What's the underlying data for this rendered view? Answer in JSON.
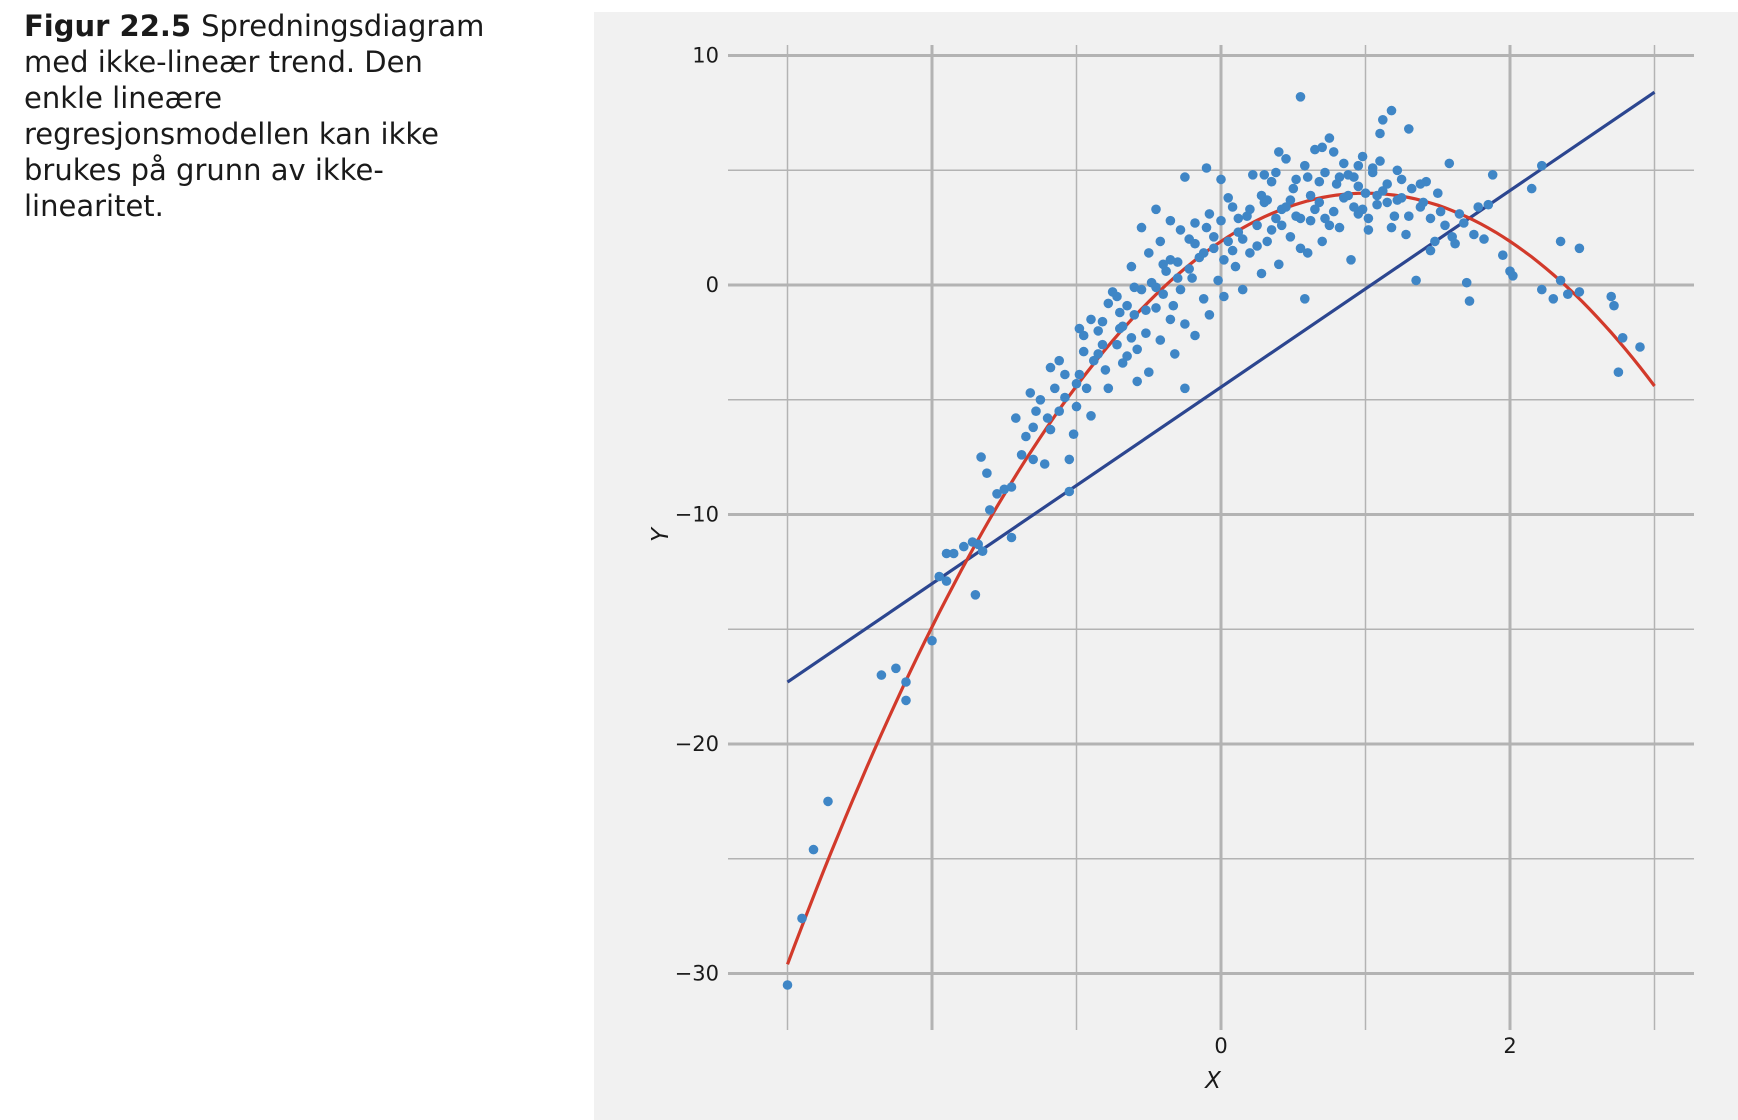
{
  "caption": {
    "label": "Figur 22.5",
    "text": "Spredningsdiagram med ikke-lineær trend. Den enkle lineære regresjonsmodellen kan ikke brukes på grunn av ikke-linearitet."
  },
  "chart_data": {
    "type": "scatter",
    "title": "",
    "xlabel": "X",
    "ylabel": "Y",
    "xlim": [
      -3.0,
      3.1
    ],
    "ylim": [
      -32.5,
      10.5
    ],
    "x_ticks": [
      {
        "value": 0,
        "label": "0"
      },
      {
        "value": 2,
        "label": "2"
      }
    ],
    "x_grid_major": [
      -2,
      0,
      2
    ],
    "x_grid_minor": [
      -3,
      -1,
      1,
      3
    ],
    "y_ticks": [
      {
        "value": 10,
        "label": "10"
      },
      {
        "value": 0,
        "label": "0"
      },
      {
        "value": -10,
        "label": "−10"
      },
      {
        "value": -20,
        "label": "−20"
      },
      {
        "value": -30,
        "label": "−30"
      }
    ],
    "y_grid_major": [
      10,
      0,
      -10,
      -20,
      -30
    ],
    "y_grid_minor": [
      5,
      -5,
      -15,
      -25
    ],
    "grid": true,
    "colors": {
      "points": "#3f86c6",
      "quadratic_fit": "#d23a2b",
      "linear_fit": "#2c4690",
      "grid": "#b3b3b3",
      "panel": "#f1f1f1"
    },
    "linear_fit": {
      "x": [
        -3.0,
        3.0
      ],
      "y": [
        -17.3,
        8.4
      ]
    },
    "quadratic_fit": {
      "x_range": [
        -3.0,
        3.0
      ],
      "vertex_x": 1.0,
      "vertex_y": 4.0,
      "coef_a": -2.1
    },
    "points": [
      {
        "x": -3.0,
        "y": -30.5
      },
      {
        "x": -2.9,
        "y": -27.6
      },
      {
        "x": -2.82,
        "y": -24.6
      },
      {
        "x": -2.72,
        "y": -22.5
      },
      {
        "x": -2.35,
        "y": -17.0
      },
      {
        "x": -2.25,
        "y": -16.7
      },
      {
        "x": -2.18,
        "y": -17.3
      },
      {
        "x": -2.18,
        "y": -18.1
      },
      {
        "x": -2.0,
        "y": -15.5
      },
      {
        "x": -1.95,
        "y": -12.7
      },
      {
        "x": -1.9,
        "y": -12.9
      },
      {
        "x": -1.9,
        "y": -11.7
      },
      {
        "x": -1.85,
        "y": -11.7
      },
      {
        "x": -1.78,
        "y": -11.4
      },
      {
        "x": -1.72,
        "y": -11.2
      },
      {
        "x": -1.7,
        "y": -13.5
      },
      {
        "x": -1.68,
        "y": -11.3
      },
      {
        "x": -1.65,
        "y": -11.6
      },
      {
        "x": -1.6,
        "y": -9.8
      },
      {
        "x": -1.55,
        "y": -9.1
      },
      {
        "x": -1.5,
        "y": -8.9
      },
      {
        "x": -1.45,
        "y": -8.8
      },
      {
        "x": -1.45,
        "y": -11.0
      },
      {
        "x": -1.62,
        "y": -8.2
      },
      {
        "x": -1.66,
        "y": -7.5
      },
      {
        "x": -1.38,
        "y": -7.4
      },
      {
        "x": -1.3,
        "y": -7.6
      },
      {
        "x": -1.3,
        "y": -6.2
      },
      {
        "x": -1.28,
        "y": -5.5
      },
      {
        "x": -1.2,
        "y": -5.8
      },
      {
        "x": -1.22,
        "y": -7.8
      },
      {
        "x": -1.18,
        "y": -6.3
      },
      {
        "x": -1.15,
        "y": -4.5
      },
      {
        "x": -1.12,
        "y": -3.3
      },
      {
        "x": -1.08,
        "y": -3.9
      },
      {
        "x": -1.05,
        "y": -9.0
      },
      {
        "x": -1.05,
        "y": -7.6
      },
      {
        "x": -1.02,
        "y": -6.5
      },
      {
        "x": -1.0,
        "y": -5.3
      },
      {
        "x": -0.98,
        "y": -3.9
      },
      {
        "x": -0.95,
        "y": -2.9
      },
      {
        "x": -0.93,
        "y": -4.5
      },
      {
        "x": -0.9,
        "y": -5.7
      },
      {
        "x": -0.88,
        "y": -3.3
      },
      {
        "x": -0.85,
        "y": -2.0
      },
      {
        "x": -0.82,
        "y": -1.6
      },
      {
        "x": -0.8,
        "y": -3.7
      },
      {
        "x": -0.78,
        "y": -4.5
      },
      {
        "x": -0.75,
        "y": -0.3
      },
      {
        "x": -0.72,
        "y": -2.6
      },
      {
        "x": -0.7,
        "y": -1.9
      },
      {
        "x": -0.68,
        "y": -3.4
      },
      {
        "x": -0.65,
        "y": -0.9
      },
      {
        "x": -0.62,
        "y": -2.3
      },
      {
        "x": -0.6,
        "y": -1.3
      },
      {
        "x": -0.58,
        "y": -4.2
      },
      {
        "x": -0.55,
        "y": -0.2
      },
      {
        "x": -0.52,
        "y": -2.1
      },
      {
        "x": -0.5,
        "y": -3.8
      },
      {
        "x": -0.48,
        "y": 0.1
      },
      {
        "x": -0.45,
        "y": -1.0
      },
      {
        "x": -0.42,
        "y": -2.4
      },
      {
        "x": -0.4,
        "y": -0.4
      },
      {
        "x": -0.38,
        "y": 0.6
      },
      {
        "x": -0.35,
        "y": -1.5
      },
      {
        "x": -0.32,
        "y": -3.0
      },
      {
        "x": -0.3,
        "y": 1.0
      },
      {
        "x": -0.28,
        "y": -0.2
      },
      {
        "x": -0.25,
        "y": -1.7
      },
      {
        "x": -0.25,
        "y": -4.5
      },
      {
        "x": -0.22,
        "y": 2.0
      },
      {
        "x": -0.2,
        "y": 0.3
      },
      {
        "x": -0.18,
        "y": -2.2
      },
      {
        "x": -0.15,
        "y": 1.2
      },
      {
        "x": -0.12,
        "y": -0.6
      },
      {
        "x": -0.1,
        "y": 2.5
      },
      {
        "x": -0.08,
        "y": -1.3
      },
      {
        "x": -0.05,
        "y": 1.6
      },
      {
        "x": -0.02,
        "y": 0.2
      },
      {
        "x": 0.0,
        "y": 2.8
      },
      {
        "x": 0.02,
        "y": -0.5
      },
      {
        "x": 0.05,
        "y": 1.9
      },
      {
        "x": 0.08,
        "y": 3.4
      },
      {
        "x": 0.1,
        "y": 0.8
      },
      {
        "x": 0.12,
        "y": 2.3
      },
      {
        "x": 0.15,
        "y": -0.2
      },
      {
        "x": 0.18,
        "y": 3.0
      },
      {
        "x": 0.2,
        "y": 1.4
      },
      {
        "x": 0.22,
        "y": 4.8
      },
      {
        "x": 0.25,
        "y": 2.6
      },
      {
        "x": 0.28,
        "y": 0.5
      },
      {
        "x": 0.3,
        "y": 3.6
      },
      {
        "x": 0.32,
        "y": 1.9
      },
      {
        "x": 0.35,
        "y": 4.5
      },
      {
        "x": 0.38,
        "y": 2.9
      },
      {
        "x": 0.4,
        "y": 0.9
      },
      {
        "x": 0.42,
        "y": 3.3
      },
      {
        "x": 0.45,
        "y": 5.5
      },
      {
        "x": 0.48,
        "y": 2.1
      },
      {
        "x": 0.5,
        "y": 4.2
      },
      {
        "x": 0.52,
        "y": 3.0
      },
      {
        "x": 0.55,
        "y": 8.2
      },
      {
        "x": 0.55,
        "y": 1.6
      },
      {
        "x": 0.58,
        "y": -0.6
      },
      {
        "x": 0.6,
        "y": 4.7
      },
      {
        "x": 0.62,
        "y": 2.8
      },
      {
        "x": 0.65,
        "y": 5.9
      },
      {
        "x": 0.68,
        "y": 3.6
      },
      {
        "x": 0.7,
        "y": 1.9
      },
      {
        "x": 0.72,
        "y": 4.9
      },
      {
        "x": 0.75,
        "y": 6.4
      },
      {
        "x": 0.78,
        "y": 3.2
      },
      {
        "x": 0.8,
        "y": 4.4
      },
      {
        "x": 0.82,
        "y": 2.5
      },
      {
        "x": 0.85,
        "y": 5.3
      },
      {
        "x": 0.88,
        "y": 3.9
      },
      {
        "x": 0.9,
        "y": 1.1
      },
      {
        "x": 0.92,
        "y": 4.7
      },
      {
        "x": 0.95,
        "y": 3.1
      },
      {
        "x": 0.98,
        "y": 5.6
      },
      {
        "x": 1.0,
        "y": 4.0
      },
      {
        "x": 1.02,
        "y": 2.4
      },
      {
        "x": 1.05,
        "y": 5.1
      },
      {
        "x": 1.08,
        "y": 3.5
      },
      {
        "x": 1.1,
        "y": 6.6
      },
      {
        "x": 1.12,
        "y": 7.2
      },
      {
        "x": 1.15,
        "y": 4.4
      },
      {
        "x": 1.18,
        "y": 7.6
      },
      {
        "x": 1.2,
        "y": 3.0
      },
      {
        "x": 1.22,
        "y": 5.0
      },
      {
        "x": 1.25,
        "y": 3.8
      },
      {
        "x": 1.28,
        "y": 2.2
      },
      {
        "x": 1.3,
        "y": 6.8
      },
      {
        "x": 1.32,
        "y": 4.2
      },
      {
        "x": 1.35,
        "y": 0.2
      },
      {
        "x": 1.38,
        "y": 3.4
      },
      {
        "x": 1.42,
        "y": 4.5
      },
      {
        "x": 1.45,
        "y": 2.9
      },
      {
        "x": 1.48,
        "y": 1.9
      },
      {
        "x": 1.5,
        "y": 4.0
      },
      {
        "x": 1.55,
        "y": 2.6
      },
      {
        "x": 1.58,
        "y": 5.3
      },
      {
        "x": 1.62,
        "y": 1.8
      },
      {
        "x": 1.65,
        "y": 3.1
      },
      {
        "x": 1.7,
        "y": 0.1
      },
      {
        "x": 1.72,
        "y": -0.7
      },
      {
        "x": 1.75,
        "y": 2.2
      },
      {
        "x": 1.78,
        "y": 3.4
      },
      {
        "x": 1.82,
        "y": 2.0
      },
      {
        "x": 1.85,
        "y": 3.5
      },
      {
        "x": 1.88,
        "y": 4.8
      },
      {
        "x": 1.95,
        "y": 1.3
      },
      {
        "x": 2.0,
        "y": 0.6
      },
      {
        "x": 2.02,
        "y": 0.4
      },
      {
        "x": 2.15,
        "y": 4.2
      },
      {
        "x": 2.22,
        "y": 5.2
      },
      {
        "x": 2.22,
        "y": -0.2
      },
      {
        "x": 2.3,
        "y": -0.6
      },
      {
        "x": 2.35,
        "y": 1.9
      },
      {
        "x": 2.35,
        "y": 0.2
      },
      {
        "x": 2.4,
        "y": -0.4
      },
      {
        "x": 2.48,
        "y": 1.6
      },
      {
        "x": 2.48,
        "y": -0.3
      },
      {
        "x": 2.7,
        "y": -0.5
      },
      {
        "x": 2.72,
        "y": -0.9
      },
      {
        "x": 2.75,
        "y": -3.8
      },
      {
        "x": 2.78,
        "y": -2.3
      },
      {
        "x": 2.9,
        "y": -2.7
      },
      {
        "x": -0.62,
        "y": 0.8
      },
      {
        "x": -0.5,
        "y": 1.4
      },
      {
        "x": -0.42,
        "y": 1.9
      },
      {
        "x": -0.35,
        "y": 1.1
      },
      {
        "x": -0.28,
        "y": 2.4
      },
      {
        "x": -0.18,
        "y": 1.8
      },
      {
        "x": -0.08,
        "y": 3.1
      },
      {
        "x": 0.05,
        "y": 3.8
      },
      {
        "x": 0.15,
        "y": 2.0
      },
      {
        "x": 0.28,
        "y": 3.9
      },
      {
        "x": 0.38,
        "y": 4.9
      },
      {
        "x": 0.48,
        "y": 3.7
      },
      {
        "x": 0.58,
        "y": 5.2
      },
      {
        "x": 0.68,
        "y": 4.5
      },
      {
        "x": 0.78,
        "y": 5.8
      },
      {
        "x": 0.88,
        "y": 4.8
      },
      {
        "x": 0.98,
        "y": 3.3
      },
      {
        "x": 1.05,
        "y": 4.9
      },
      {
        "x": 1.15,
        "y": 3.6
      },
      {
        "x": 1.25,
        "y": 4.6
      },
      {
        "x": -0.9,
        "y": -1.5
      },
      {
        "x": -0.78,
        "y": -0.8
      },
      {
        "x": -0.68,
        "y": -1.8
      },
      {
        "x": -0.58,
        "y": -2.8
      },
      {
        "x": -0.45,
        "y": -0.1
      },
      {
        "x": -0.33,
        "y": -0.9
      },
      {
        "x": -0.22,
        "y": 0.7
      },
      {
        "x": -0.12,
        "y": 1.4
      },
      {
        "x": 0.02,
        "y": 1.1
      },
      {
        "x": 0.12,
        "y": 2.9
      },
      {
        "x": 0.25,
        "y": 1.7
      },
      {
        "x": 0.35,
        "y": 2.4
      },
      {
        "x": 0.45,
        "y": 3.4
      },
      {
        "x": 0.55,
        "y": 2.9
      },
      {
        "x": 0.65,
        "y": 3.3
      },
      {
        "x": 0.75,
        "y": 2.6
      },
      {
        "x": 0.85,
        "y": 3.8
      },
      {
        "x": 0.95,
        "y": 4.3
      },
      {
        "x": 1.02,
        "y": 2.9
      },
      {
        "x": 1.12,
        "y": 4.1
      },
      {
        "x": -1.35,
        "y": -6.6
      },
      {
        "x": -1.25,
        "y": -5.0
      },
      {
        "x": -1.12,
        "y": -5.5
      },
      {
        "x": -1.0,
        "y": -4.3
      },
      {
        "x": -0.95,
        "y": -2.2
      },
      {
        "x": -0.85,
        "y": -3.0
      },
      {
        "x": -0.72,
        "y": -0.5
      },
      {
        "x": -0.6,
        "y": -0.1
      },
      {
        "x": -0.52,
        "y": -1.1
      },
      {
        "x": -0.4,
        "y": 0.9
      },
      {
        "x": -0.3,
        "y": 0.3
      },
      {
        "x": -0.18,
        "y": 2.7
      },
      {
        "x": -0.05,
        "y": 2.1
      },
      {
        "x": 0.08,
        "y": 1.5
      },
      {
        "x": 0.2,
        "y": 3.3
      },
      {
        "x": 0.32,
        "y": 3.7
      },
      {
        "x": 0.42,
        "y": 2.6
      },
      {
        "x": 0.52,
        "y": 4.6
      },
      {
        "x": 0.62,
        "y": 3.9
      },
      {
        "x": 0.72,
        "y": 2.9
      },
      {
        "x": 0.82,
        "y": 4.7
      },
      {
        "x": 0.92,
        "y": 3.4
      },
      {
        "x": 1.08,
        "y": 3.9
      },
      {
        "x": 1.18,
        "y": 2.5
      },
      {
        "x": -0.25,
        "y": 4.7
      },
      {
        "x": -0.1,
        "y": 5.1
      },
      {
        "x": 0.0,
        "y": 4.6
      },
      {
        "x": 0.3,
        "y": 4.8
      },
      {
        "x": 0.4,
        "y": 5.8
      },
      {
        "x": 0.7,
        "y": 6.0
      },
      {
        "x": 0.95,
        "y": 5.2
      },
      {
        "x": 1.1,
        "y": 5.4
      },
      {
        "x": -0.45,
        "y": 3.3
      },
      {
        "x": -0.55,
        "y": 2.5
      },
      {
        "x": -0.35,
        "y": 2.8
      },
      {
        "x": 0.6,
        "y": 1.4
      },
      {
        "x": -1.42,
        "y": -5.8
      },
      {
        "x": -1.32,
        "y": -4.7
      },
      {
        "x": -1.18,
        "y": -3.6
      },
      {
        "x": -1.08,
        "y": -4.9
      },
      {
        "x": -0.98,
        "y": -1.9
      },
      {
        "x": -0.82,
        "y": -2.6
      },
      {
        "x": -0.7,
        "y": -1.2
      },
      {
        "x": -0.65,
        "y": -3.1
      },
      {
        "x": 1.38,
        "y": 4.4
      },
      {
        "x": 1.45,
        "y": 1.5
      },
      {
        "x": 1.52,
        "y": 3.2
      },
      {
        "x": 1.6,
        "y": 2.1
      },
      {
        "x": 1.3,
        "y": 3.0
      },
      {
        "x": 1.22,
        "y": 3.7
      },
      {
        "x": 1.4,
        "y": 3.6
      },
      {
        "x": 1.68,
        "y": 2.7
      }
    ]
  }
}
